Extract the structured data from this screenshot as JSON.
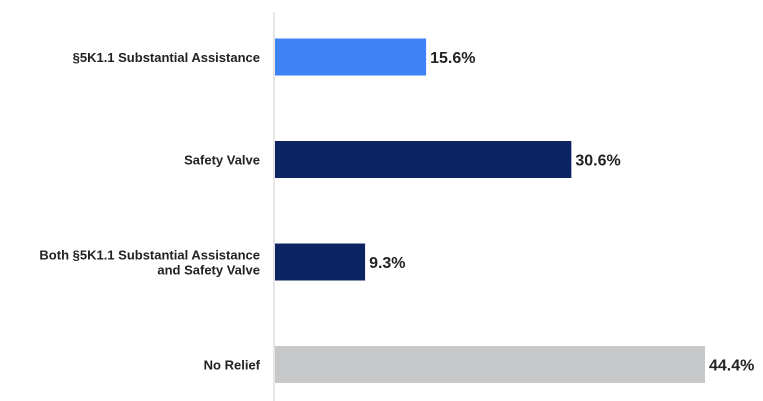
{
  "chart_data": {
    "type": "bar",
    "orientation": "horizontal",
    "categories": [
      [
        "§5K1.1 Substantial Assistance"
      ],
      [
        "Safety Valve"
      ],
      [
        "Both §5K1.1 Substantial Assistance",
        "and Safety Valve"
      ],
      [
        "No Relief"
      ]
    ],
    "values": [
      15.6,
      30.6,
      9.3,
      44.4
    ],
    "value_labels": [
      "15.6%",
      "30.6%",
      "9.3%",
      "44.4%"
    ],
    "bar_colors": [
      "#3d82f7",
      "#0c2461",
      "#0c2461",
      "#c7c8ca"
    ],
    "xlim": [
      0,
      44.4
    ],
    "axis_color": "#cccccc",
    "grid": false,
    "legend": "none"
  }
}
